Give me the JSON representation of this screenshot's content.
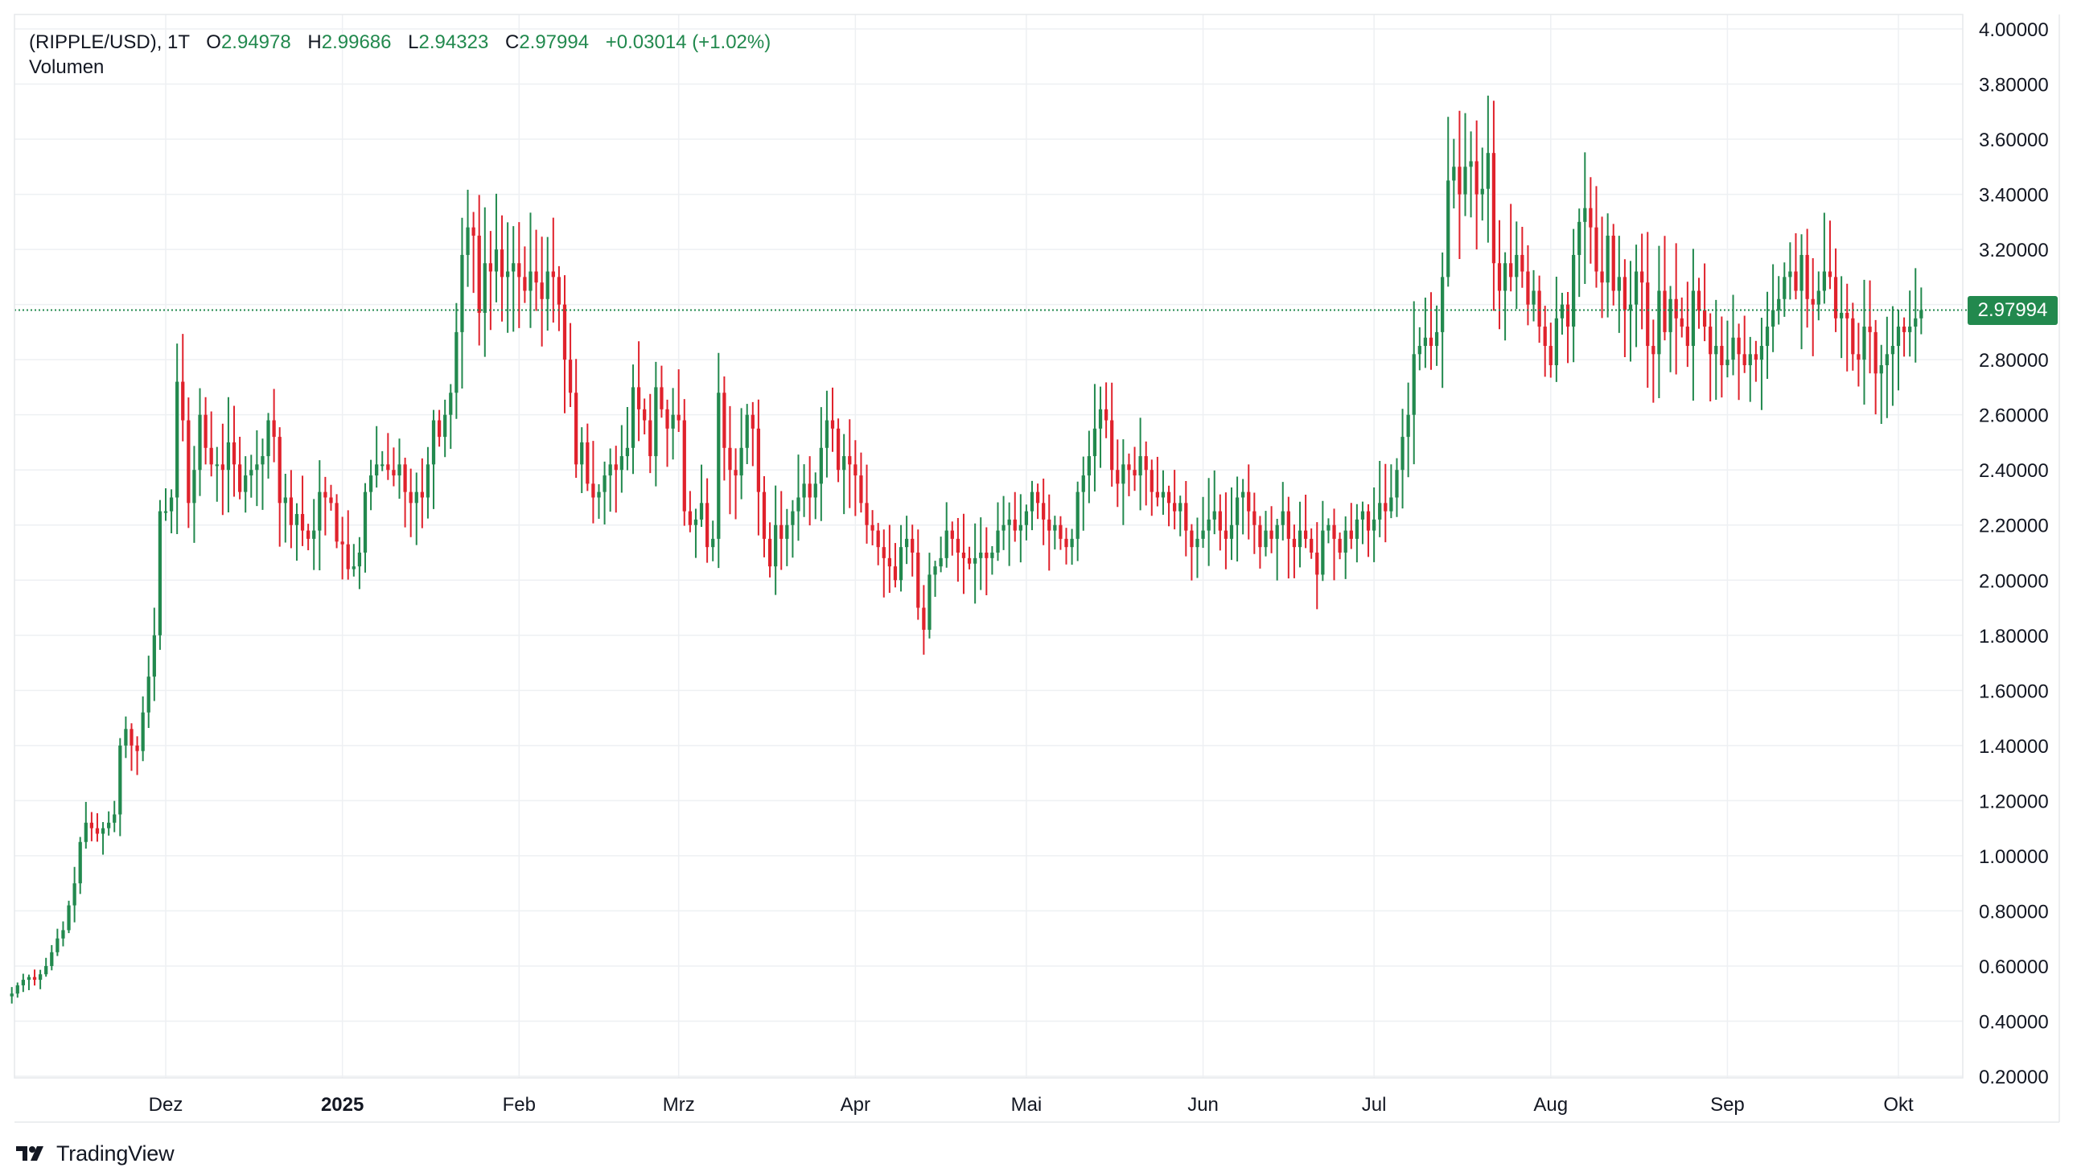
{
  "header": {
    "symbol": "(RIPPLE/USD), 1T",
    "open_label": "O",
    "open": "2.94978",
    "high_label": "H",
    "high": "2.99686",
    "low_label": "L",
    "low": "2.94323",
    "close_label": "C",
    "close": "2.97994",
    "change": "+0.03014 (+1.02%)",
    "volume_label": "Volumen"
  },
  "last_price_label": "2.97994",
  "brand": {
    "name": "TradingView",
    "logo_icon": "tradingview-logo-icon"
  },
  "colors": {
    "up": "#22894e",
    "down": "#e0222c",
    "grid": "#eef0f3",
    "axis_text": "#131722"
  },
  "chart_data": {
    "type": "candlestick",
    "ylim": [
      0.2,
      4.0
    ],
    "y_ticks": [
      "4.00000",
      "3.80000",
      "3.60000",
      "3.40000",
      "3.20000",
      "3.00000",
      "2.80000",
      "2.60000",
      "2.40000",
      "2.20000",
      "2.00000",
      "1.80000",
      "1.60000",
      "1.40000",
      "1.20000",
      "1.00000",
      "0.80000",
      "0.60000",
      "0.40000",
      "0.20000"
    ],
    "x_ticks": [
      {
        "label": "Dez",
        "date": "2024-12-01",
        "bold": false
      },
      {
        "label": "2025",
        "date": "2025-01-01",
        "bold": true
      },
      {
        "label": "Feb",
        "date": "2025-02-01",
        "bold": false
      },
      {
        "label": "Mrz",
        "date": "2025-03-01",
        "bold": false
      },
      {
        "label": "Apr",
        "date": "2025-04-01",
        "bold": false
      },
      {
        "label": "Mai",
        "date": "2025-05-01",
        "bold": false
      },
      {
        "label": "Jun",
        "date": "2025-06-01",
        "bold": false
      },
      {
        "label": "Jul",
        "date": "2025-07-01",
        "bold": false
      },
      {
        "label": "Aug",
        "date": "2025-08-01",
        "bold": false
      },
      {
        "label": "Sep",
        "date": "2025-09-01",
        "bold": false
      },
      {
        "label": "Okt",
        "date": "2025-10-01",
        "bold": false
      }
    ],
    "start_date": "2024-11-04",
    "last_close": 2.97994,
    "grid": true,
    "closes": [
      0.5,
      0.53,
      0.55,
      0.56,
      0.55,
      0.57,
      0.6,
      0.65,
      0.7,
      0.73,
      0.82,
      0.9,
      1.05,
      1.12,
      1.1,
      1.08,
      1.1,
      1.12,
      1.15,
      1.4,
      1.46,
      1.4,
      1.38,
      1.52,
      1.65,
      1.8,
      2.25,
      2.25,
      2.3,
      2.72,
      2.58,
      2.28,
      2.4,
      2.6,
      2.48,
      2.42,
      2.42,
      2.4,
      2.5,
      2.42,
      2.32,
      2.38,
      2.4,
      2.42,
      2.45,
      2.58,
      2.52,
      2.28,
      2.3,
      2.2,
      2.24,
      2.18,
      2.15,
      2.18,
      2.32,
      2.3,
      2.28,
      2.14,
      2.13,
      2.04,
      2.05,
      2.1,
      2.32,
      2.38,
      2.42,
      2.42,
      2.4,
      2.38,
      2.42,
      2.32,
      2.28,
      2.32,
      2.3,
      2.42,
      2.58,
      2.52,
      2.6,
      2.68,
      2.9,
      3.18,
      3.28,
      3.25,
      2.97,
      3.15,
      3.12,
      3.2,
      3.1,
      3.12,
      3.15,
      3.1,
      3.05,
      3.12,
      3.08,
      3.02,
      3.12,
      3.1,
      3.0,
      2.8,
      2.68,
      2.42,
      2.5,
      2.35,
      2.3,
      2.32,
      2.38,
      2.42,
      2.4,
      2.45,
      2.48,
      2.7,
      2.62,
      2.58,
      2.45,
      2.7,
      2.62,
      2.55,
      2.6,
      2.58,
      2.25,
      2.2,
      2.22,
      2.28,
      2.12,
      2.15,
      2.68,
      2.48,
      2.4,
      2.38,
      2.48,
      2.6,
      2.55,
      2.32,
      2.15,
      2.05,
      2.2,
      2.15,
      2.2,
      2.25,
      2.3,
      2.35,
      2.3,
      2.35,
      2.48,
      2.58,
      2.55,
      2.4,
      2.45,
      2.42,
      2.38,
      2.28,
      2.2,
      2.18,
      2.12,
      2.08,
      2.05,
      2.0,
      2.12,
      2.15,
      2.1,
      1.9,
      1.82,
      2.02,
      2.05,
      2.08,
      2.18,
      2.15,
      2.1,
      2.08,
      2.06,
      2.08,
      2.1,
      2.08,
      2.1,
      2.18,
      2.2,
      2.22,
      2.18,
      2.2,
      2.25,
      2.32,
      2.28,
      2.22,
      2.18,
      2.2,
      2.15,
      2.12,
      2.15,
      2.32,
      2.38,
      2.45,
      2.55,
      2.62,
      2.58,
      2.4,
      2.35,
      2.42,
      2.4,
      2.38,
      2.45,
      2.4,
      2.32,
      2.3,
      2.32,
      2.28,
      2.25,
      2.28,
      2.18,
      2.12,
      2.15,
      2.18,
      2.22,
      2.25,
      2.18,
      2.15,
      2.2,
      2.3,
      2.32,
      2.25,
      2.2,
      2.12,
      2.18,
      2.15,
      2.2,
      2.25,
      2.15,
      2.12,
      2.18,
      2.15,
      2.1,
      2.02,
      2.18,
      2.2,
      2.15,
      2.1,
      2.18,
      2.15,
      2.22,
      2.25,
      2.18,
      2.22,
      2.28,
      2.25,
      2.3,
      2.4,
      2.52,
      2.6,
      2.82,
      2.85,
      2.88,
      2.85,
      2.9,
      3.1,
      3.45,
      3.5,
      3.4,
      3.5,
      3.52,
      3.4,
      3.42,
      3.55,
      3.15,
      3.05,
      3.15,
      3.1,
      3.18,
      3.12,
      3.0,
      3.05,
      2.92,
      2.85,
      2.78,
      2.95,
      3.0,
      2.92,
      3.18,
      3.3,
      3.35,
      3.28,
      3.12,
      3.08,
      3.25,
      3.05,
      3.1,
      2.98,
      3.0,
      3.12,
      3.08,
      2.85,
      2.82,
      3.05,
      2.9,
      3.02,
      2.95,
      2.92,
      2.85,
      3.05,
      2.98,
      2.92,
      2.82,
      2.85,
      2.78,
      2.8,
      2.88,
      2.82,
      2.78,
      2.82,
      2.8,
      2.85,
      2.92,
      2.98,
      3.02,
      3.1,
      3.12,
      3.05,
      3.18,
      3.02,
      3.0,
      3.05,
      3.12,
      3.1,
      2.95,
      2.97,
      2.95,
      2.82,
      2.8,
      2.92,
      2.9,
      2.75,
      2.78,
      2.82,
      2.85,
      2.92,
      2.9,
      2.92,
      2.95,
      2.98
    ]
  }
}
